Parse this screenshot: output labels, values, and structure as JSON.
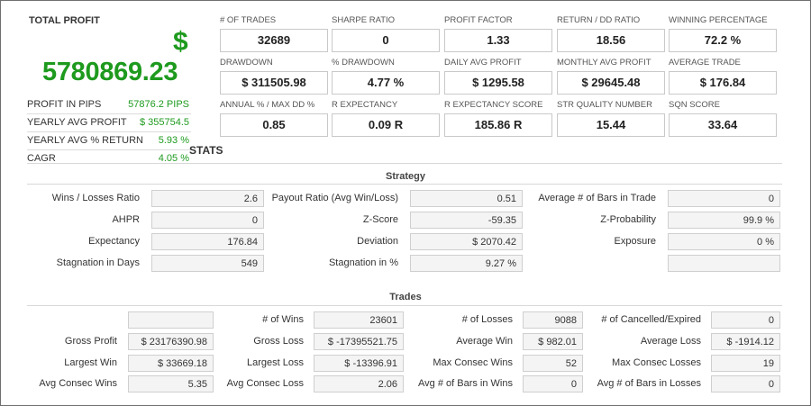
{
  "summary": {
    "total_profit_label": "TOTAL PROFIT",
    "currency_symbol": "$",
    "total_profit_value": "5780869.23",
    "rows": [
      {
        "label": "PROFIT IN PIPS",
        "value": "57876.2 PIPS"
      },
      {
        "label": "YEARLY AVG PROFIT",
        "value": "$ 355754.5"
      },
      {
        "label": "YEARLY AVG % RETURN",
        "value": "5.93 %"
      },
      {
        "label": "CAGR",
        "value": "4.05 %"
      }
    ]
  },
  "metrics": [
    {
      "label": "# OF TRADES",
      "value": "32689"
    },
    {
      "label": "SHARPE RATIO",
      "value": "0"
    },
    {
      "label": "PROFIT FACTOR",
      "value": "1.33"
    },
    {
      "label": "RETURN / DD RATIO",
      "value": "18.56"
    },
    {
      "label": "WINNING PERCENTAGE",
      "value": "72.2 %"
    },
    {
      "label": "DRAWDOWN",
      "value": "$ 311505.98"
    },
    {
      "label": "% DRAWDOWN",
      "value": "4.77 %"
    },
    {
      "label": "DAILY AVG PROFIT",
      "value": "$ 1295.58"
    },
    {
      "label": "MONTHLY AVG PROFIT",
      "value": "$ 29645.48"
    },
    {
      "label": "AVERAGE TRADE",
      "value": "$ 176.84"
    },
    {
      "label": "ANNUAL % / MAX DD %",
      "value": "0.85"
    },
    {
      "label": "R EXPECTANCY",
      "value": "0.09 R"
    },
    {
      "label": "R EXPECTANCY SCORE",
      "value": "185.86 R"
    },
    {
      "label": "STR QUALITY NUMBER",
      "value": "15.44"
    },
    {
      "label": "SQN SCORE",
      "value": "33.64"
    }
  ],
  "stats_title": "STATS",
  "strategy": {
    "title": "Strategy",
    "rows": [
      [
        {
          "label": "Wins / Losses Ratio",
          "value": "2.6"
        },
        {
          "label": "Payout Ratio (Avg Win/Loss)",
          "value": "0.51"
        },
        {
          "label": "Average # of Bars in Trade",
          "value": "0"
        }
      ],
      [
        {
          "label": "AHPR",
          "value": "0"
        },
        {
          "label": "Z-Score",
          "value": "-59.35"
        },
        {
          "label": "Z-Probability",
          "value": "99.9 %"
        }
      ],
      [
        {
          "label": "Expectancy",
          "value": "176.84"
        },
        {
          "label": "Deviation",
          "value": "$ 2070.42"
        },
        {
          "label": "Exposure",
          "value": "0 %"
        }
      ],
      [
        {
          "label": "Stagnation in Days",
          "value": "549"
        },
        {
          "label": "Stagnation in %",
          "value": "9.27 %"
        },
        {
          "label": "",
          "value": ""
        }
      ]
    ]
  },
  "trades": {
    "title": "Trades",
    "rows": [
      [
        {
          "label": "",
          "value": ""
        },
        {
          "label": "# of Wins",
          "value": "23601"
        },
        {
          "label": "# of Losses",
          "value": "9088"
        },
        {
          "label": "# of Cancelled/Expired",
          "value": "0"
        }
      ],
      [
        {
          "label": "Gross Profit",
          "value": "$ 23176390.98"
        },
        {
          "label": "Gross Loss",
          "value": "$ -17395521.75"
        },
        {
          "label": "Average Win",
          "value": "$ 982.01"
        },
        {
          "label": "Average Loss",
          "value": "$ -1914.12"
        }
      ],
      [
        {
          "label": "Largest Win",
          "value": "$ 33669.18"
        },
        {
          "label": "Largest Loss",
          "value": "$ -13396.91"
        },
        {
          "label": "Max Consec Wins",
          "value": "52"
        },
        {
          "label": "Max Consec Losses",
          "value": "19"
        }
      ],
      [
        {
          "label": "Avg Consec Wins",
          "value": "5.35"
        },
        {
          "label": "Avg Consec Loss",
          "value": "2.06"
        },
        {
          "label": "Avg # of Bars in Wins",
          "value": "0"
        },
        {
          "label": "Avg # of Bars in Losses",
          "value": "0"
        }
      ]
    ]
  },
  "colors": {
    "profit_green": "#1e9a1e",
    "border": "#c9c9c9",
    "field_bg": "#f4f4f4"
  }
}
